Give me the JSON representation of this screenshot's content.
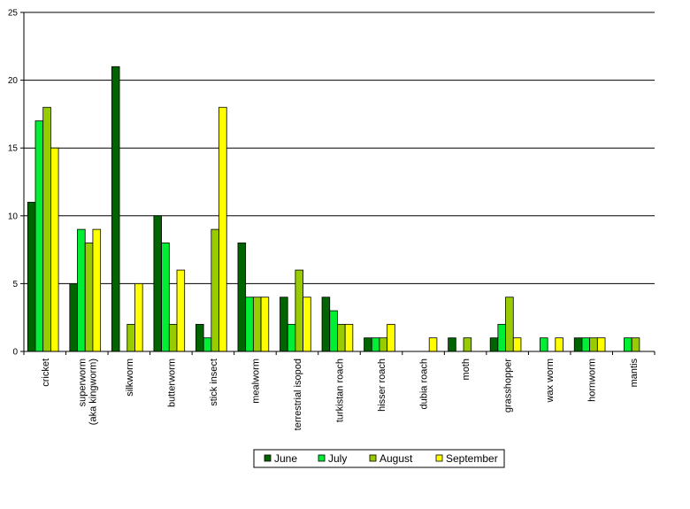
{
  "chart_data": {
    "type": "bar",
    "title": "",
    "xlabel": "",
    "ylabel": "",
    "ylim": [
      0,
      25
    ],
    "yticks": [
      0,
      5,
      10,
      15,
      20,
      25
    ],
    "grid": "horizontal",
    "legend_position": "bottom-center",
    "categories": [
      "cricket",
      "superworm\n(aka kingworm)",
      "silkworm",
      "butterworm",
      "stick insect",
      "mealworm",
      "terrestrial isopod",
      "turkistan roach",
      "hisser roach",
      "dubia roach",
      "moth",
      "grasshopper",
      "wax worm",
      "hornworm",
      "mantis"
    ],
    "series": [
      {
        "name": "June",
        "color": "#006400",
        "values": [
          11,
          5,
          21,
          10,
          2,
          8,
          4,
          4,
          1,
          0,
          1,
          1,
          0,
          1,
          0
        ]
      },
      {
        "name": "July",
        "color": "#00ee33",
        "values": [
          17,
          9,
          0,
          8,
          1,
          4,
          2,
          3,
          1,
          0,
          0,
          2,
          1,
          1,
          1
        ]
      },
      {
        "name": "August",
        "color": "#99cc00",
        "values": [
          18,
          8,
          2,
          2,
          9,
          4,
          6,
          2,
          1,
          0,
          1,
          4,
          0,
          1,
          1
        ]
      },
      {
        "name": "September",
        "color": "#ffff00",
        "values": [
          15,
          9,
          5,
          6,
          18,
          4,
          4,
          2,
          2,
          1,
          0,
          1,
          1,
          1,
          0
        ]
      }
    ]
  }
}
